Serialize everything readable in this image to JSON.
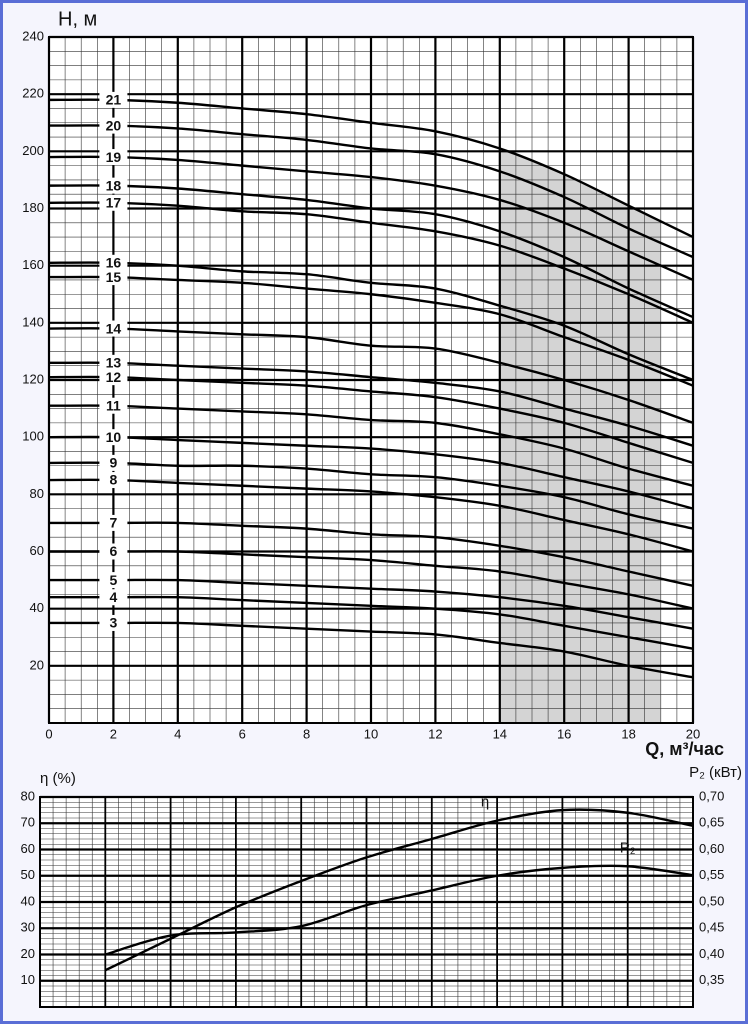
{
  "chart_data": [
    {
      "type": "line",
      "y_label": "H, м",
      "x_label": "Q, м³/час",
      "x": [
        0,
        2,
        4,
        6,
        8,
        10,
        12,
        14,
        16,
        18,
        20
      ],
      "xlim": [
        0,
        20
      ],
      "ylim": [
        0,
        240
      ],
      "xticks": [
        0,
        2,
        4,
        6,
        8,
        10,
        12,
        14,
        16,
        18,
        20
      ],
      "yticks": [
        20,
        40,
        60,
        80,
        100,
        120,
        140,
        160,
        180,
        200,
        220,
        240
      ],
      "grid": {
        "x_minor": 0.5,
        "y_minor": 5
      },
      "shaded_region": {
        "x": [
          14,
          19
        ],
        "color": "#d4d4d4"
      },
      "series": [
        {
          "name": "3",
          "color": "#000000",
          "values": [
            35,
            35,
            35,
            34,
            33,
            32,
            31,
            28,
            25,
            20,
            16
          ]
        },
        {
          "name": "4",
          "color": "#000000",
          "values": [
            44,
            44,
            44,
            43,
            42,
            41,
            40,
            38,
            34,
            30,
            26
          ]
        },
        {
          "name": "5",
          "color": "#000000",
          "values": [
            50,
            50,
            50,
            49,
            48,
            47,
            46,
            44,
            41,
            37,
            33
          ]
        },
        {
          "name": "6",
          "color": "#000000",
          "values": [
            60,
            60,
            60,
            59,
            58,
            57,
            55,
            53,
            49,
            45,
            40
          ]
        },
        {
          "name": "7",
          "color": "#000000",
          "values": [
            70,
            70,
            70,
            69,
            68,
            66,
            65,
            62,
            58,
            53,
            48
          ]
        },
        {
          "name": "8",
          "color": "#000000",
          "values": [
            85,
            85,
            84,
            83,
            82,
            81,
            79,
            76,
            71,
            66,
            60
          ]
        },
        {
          "name": "9",
          "color": "#000000",
          "values": [
            91,
            91,
            90,
            90,
            89,
            87,
            86,
            83,
            79,
            73,
            68
          ]
        },
        {
          "name": "10",
          "color": "#000000",
          "values": [
            100,
            100,
            99,
            98,
            97,
            96,
            94,
            91,
            86,
            81,
            75
          ]
        },
        {
          "name": "11",
          "color": "#000000",
          "values": [
            111,
            111,
            110,
            109,
            108,
            106,
            105,
            101,
            96,
            89,
            83
          ]
        },
        {
          "name": "12",
          "color": "#000000",
          "values": [
            121,
            121,
            120,
            119,
            118,
            116,
            114,
            110,
            105,
            98,
            91
          ]
        },
        {
          "name": "13",
          "color": "#000000",
          "values": [
            126,
            126,
            125,
            124,
            123,
            121,
            119,
            116,
            110,
            104,
            97
          ]
        },
        {
          "name": "14",
          "color": "#000000",
          "values": [
            138,
            138,
            137,
            136,
            135,
            132,
            131,
            126,
            120,
            113,
            105
          ]
        },
        {
          "name": "15",
          "color": "#000000",
          "values": [
            156,
            156,
            155,
            154,
            152,
            150,
            147,
            143,
            135,
            127,
            118
          ]
        },
        {
          "name": "16",
          "color": "#000000",
          "values": [
            161,
            161,
            160,
            158,
            157,
            154,
            152,
            146,
            139,
            129,
            120
          ]
        },
        {
          "name": "17",
          "color": "#000000",
          "values": [
            182,
            182,
            181,
            179,
            178,
            175,
            172,
            167,
            159,
            150,
            140
          ]
        },
        {
          "name": "18",
          "color": "#000000",
          "values": [
            188,
            188,
            187,
            185,
            183,
            180,
            178,
            172,
            163,
            152,
            142
          ]
        },
        {
          "name": "19",
          "color": "#000000",
          "values": [
            198,
            198,
            197,
            195,
            193,
            191,
            188,
            183,
            175,
            165,
            155
          ]
        },
        {
          "name": "20",
          "color": "#000000",
          "values": [
            209,
            209,
            208,
            206,
            204,
            201,
            199,
            193,
            184,
            173,
            163
          ]
        },
        {
          "name": "21",
          "color": "#000000",
          "values": [
            218,
            218,
            217,
            215,
            213,
            210,
            207,
            201,
            192,
            181,
            170
          ]
        }
      ]
    },
    {
      "type": "line",
      "y_label": "η (%)",
      "y2_label": "P₂ (кВт)",
      "x": [
        2,
        4,
        6,
        8,
        10,
        12,
        14,
        16,
        18,
        20
      ],
      "xlim": [
        0,
        20
      ],
      "ylim": [
        0,
        80
      ],
      "y2lim": [
        0.3,
        0.7
      ],
      "yticks": [
        10,
        20,
        30,
        40,
        50,
        60,
        70,
        80
      ],
      "y2ticks": [
        {
          "value": 0.35,
          "label": "0,35"
        },
        {
          "value": 0.4,
          "label": "0,40"
        },
        {
          "value": 0.45,
          "label": "0,45"
        },
        {
          "value": 0.5,
          "label": "0,50"
        },
        {
          "value": 0.55,
          "label": "0,55"
        },
        {
          "value": 0.6,
          "label": "0,60"
        },
        {
          "value": 0.65,
          "label": "0,65"
        },
        {
          "value": 0.7,
          "label": "0,70"
        }
      ],
      "grid": {
        "x_major": 2,
        "x_minor": 0.4,
        "y_minor": 2
      },
      "series": [
        {
          "name": "η",
          "color": "#000000",
          "values": [
            14,
            26,
            38,
            48,
            57,
            64,
            71,
            75,
            74,
            69
          ]
        },
        {
          "name": "P₂",
          "color": "#000000",
          "axis": "y2",
          "values": [
            0.4,
            0.436,
            0.442,
            0.454,
            0.494,
            0.522,
            0.55,
            0.565,
            0.568,
            0.551
          ]
        }
      ]
    }
  ]
}
